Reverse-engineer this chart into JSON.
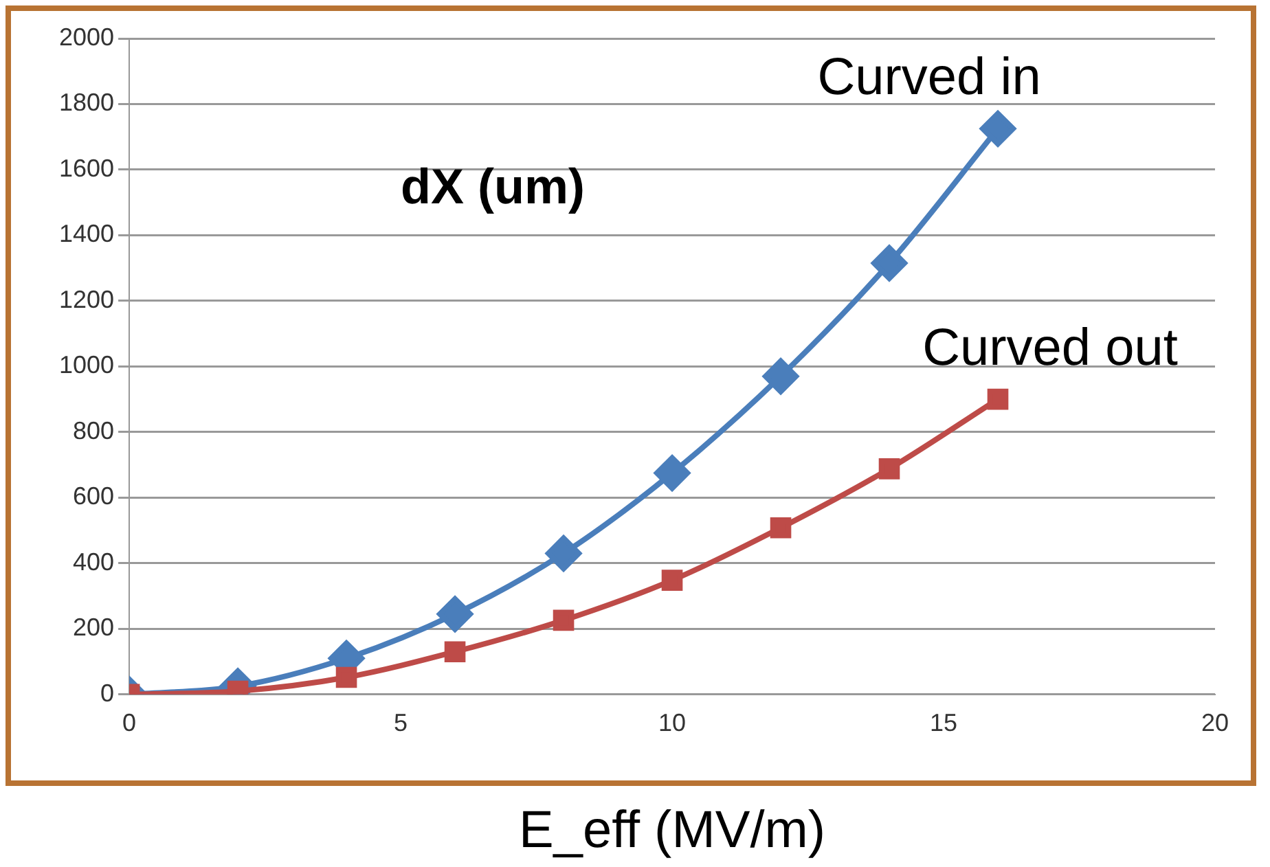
{
  "chart_data": {
    "type": "line",
    "title": "dX (um)",
    "xlabel": "E_eff (MV/m)",
    "xlim": [
      0,
      20
    ],
    "xticks": [
      0,
      5,
      10,
      15,
      20
    ],
    "ylim": [
      0,
      2000
    ],
    "yticks": [
      0,
      200,
      400,
      600,
      800,
      1000,
      1200,
      1400,
      1600,
      1800,
      2000
    ],
    "grid": "y",
    "legend": false,
    "series": [
      {
        "name": "Curved in",
        "color": "#4a7ebb",
        "marker": "diamond",
        "x": [
          0,
          2,
          4,
          6,
          8,
          10,
          12,
          14,
          16
        ],
        "values": [
          0,
          25,
          110,
          245,
          430,
          675,
          970,
          1315,
          1725
        ]
      },
      {
        "name": "Curved out",
        "color": "#be4b48",
        "marker": "square",
        "x": [
          0,
          2,
          4,
          6,
          8,
          10,
          12,
          14,
          16
        ],
        "values": [
          0,
          10,
          52,
          130,
          226,
          348,
          508,
          688,
          900
        ]
      }
    ]
  }
}
